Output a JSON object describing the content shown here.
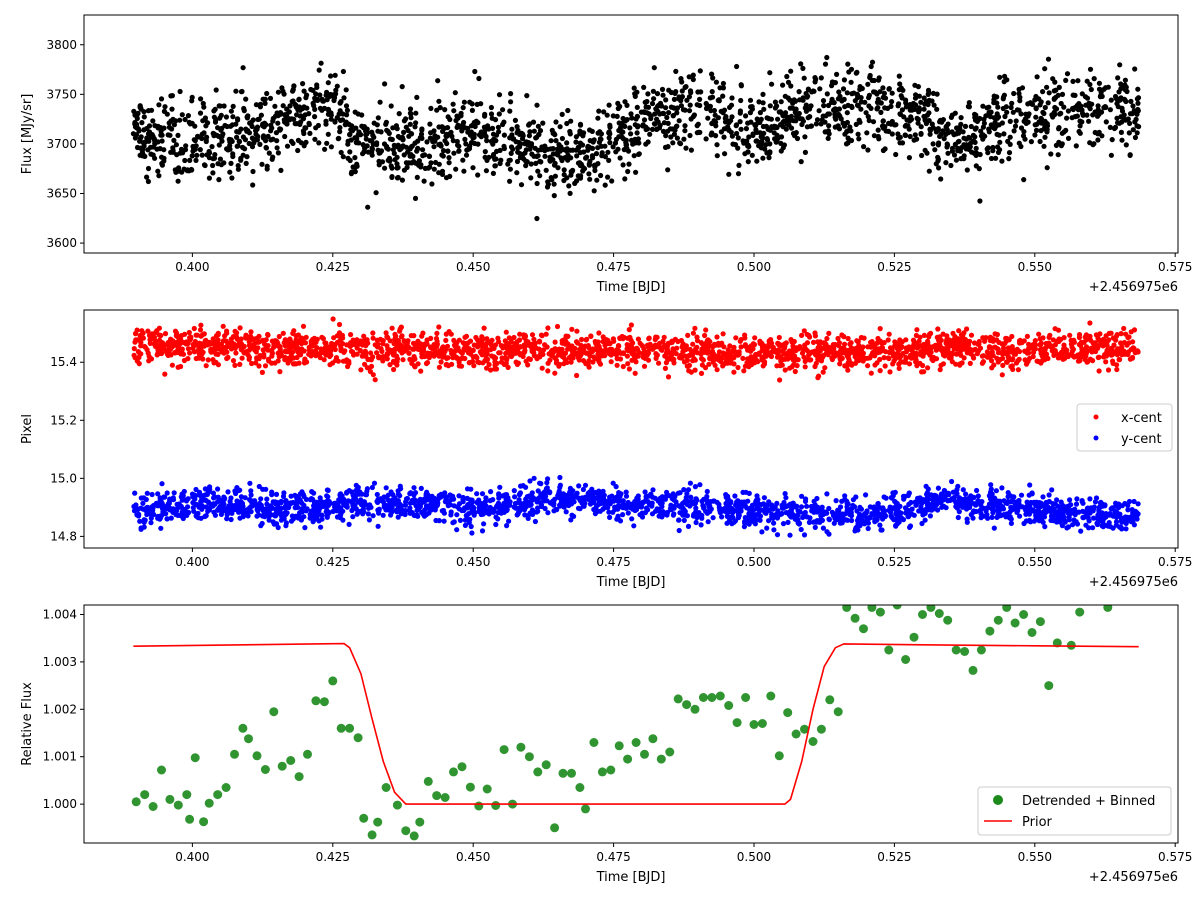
{
  "chart_data": [
    {
      "type": "scatter",
      "xlabel": "Time [BJD]",
      "ylabel": "Flux [MJy/sr]",
      "x_offset_label": "+2.456975e6",
      "xlim": [
        0.3807,
        0.5755
      ],
      "ylim": [
        3590,
        3830
      ],
      "xticks": [
        0.4,
        0.425,
        0.45,
        0.475,
        0.5,
        0.525,
        0.55,
        0.575
      ],
      "xtick_labels": [
        "0.400",
        "0.425",
        "0.450",
        "0.475",
        "0.500",
        "0.525",
        "0.550",
        "0.575"
      ],
      "yticks": [
        3600,
        3650,
        3700,
        3750,
        3800
      ],
      "ytick_labels": [
        "3600",
        "3650",
        "3700",
        "3750",
        "3800"
      ],
      "grid": false,
      "series": [
        {
          "color": "#000000",
          "x_range": [
            0.3895,
            0.5685
          ],
          "trend": [
            [
              0.3895,
              3713
            ],
            [
              0.4,
              3702
            ],
            [
              0.41,
              3712
            ],
            [
              0.42,
              3732
            ],
            [
              0.425,
              3738
            ],
            [
              0.43,
              3695
            ],
            [
              0.44,
              3700
            ],
            [
              0.45,
              3714
            ],
            [
              0.46,
              3695
            ],
            [
              0.466,
              3683
            ],
            [
              0.475,
              3703
            ],
            [
              0.485,
              3733
            ],
            [
              0.492,
              3738
            ],
            [
              0.5,
              3708
            ],
            [
              0.51,
              3738
            ],
            [
              0.52,
              3738
            ],
            [
              0.53,
              3726
            ],
            [
              0.535,
              3702
            ],
            [
              0.54,
              3712
            ],
            [
              0.55,
              3729
            ],
            [
              0.56,
              3739
            ],
            [
              0.5685,
              3738
            ]
          ],
          "spread": 20
        }
      ]
    },
    {
      "type": "scatter",
      "xlabel": "Time [BJD]",
      "ylabel": "Pixel",
      "x_offset_label": "+2.456975e6",
      "xlim": [
        0.3807,
        0.5755
      ],
      "ylim": [
        14.76,
        15.58
      ],
      "xticks": [
        0.4,
        0.425,
        0.45,
        0.475,
        0.5,
        0.525,
        0.55,
        0.575
      ],
      "xtick_labels": [
        "0.400",
        "0.425",
        "0.450",
        "0.475",
        "0.500",
        "0.525",
        "0.550",
        "0.575"
      ],
      "yticks": [
        14.8,
        15.0,
        15.2,
        15.4
      ],
      "ytick_labels": [
        "14.8",
        "15.0",
        "15.2",
        "15.4"
      ],
      "grid": false,
      "legend_position": "center-right",
      "series": [
        {
          "name": "x-cent",
          "color": "#ff0000",
          "x_range": [
            0.3895,
            0.5685
          ],
          "trend": [
            [
              0.3895,
              15.46
            ],
            [
              0.42,
              15.45
            ],
            [
              0.45,
              15.44
            ],
            [
              0.48,
              15.44
            ],
            [
              0.5,
              15.43
            ],
            [
              0.52,
              15.44
            ],
            [
              0.5685,
              15.45
            ]
          ],
          "spread": 0.03
        },
        {
          "name": "y-cent",
          "color": "#0000ff",
          "x_range": [
            0.3895,
            0.5685
          ],
          "trend": [
            [
              0.3895,
              14.88
            ],
            [
              0.4,
              14.92
            ],
            [
              0.42,
              14.89
            ],
            [
              0.43,
              14.92
            ],
            [
              0.45,
              14.9
            ],
            [
              0.465,
              14.93
            ],
            [
              0.48,
              14.91
            ],
            [
              0.5,
              14.89
            ],
            [
              0.52,
              14.87
            ],
            [
              0.535,
              14.93
            ],
            [
              0.55,
              14.89
            ],
            [
              0.5685,
              14.87
            ]
          ],
          "spread": 0.028
        }
      ]
    },
    {
      "type": "scatter",
      "xlabel": "Time [BJD]",
      "ylabel": "Relative Flux",
      "x_offset_label": "+2.456975e6",
      "xlim": [
        0.3807,
        0.5755
      ],
      "ylim": [
        0.99918,
        1.0042
      ],
      "xticks": [
        0.4,
        0.425,
        0.45,
        0.475,
        0.5,
        0.525,
        0.55,
        0.575
      ],
      "xtick_labels": [
        "0.400",
        "0.425",
        "0.450",
        "0.475",
        "0.500",
        "0.525",
        "0.550",
        "0.575"
      ],
      "yticks": [
        1.0,
        1.001,
        1.002,
        1.003,
        1.004
      ],
      "ytick_labels": [
        "1.000",
        "1.001",
        "1.002",
        "1.003",
        "1.004"
      ],
      "grid": false,
      "legend_position": "lower-right",
      "series": [
        {
          "name": "Detrended + Binned",
          "color": "#1a8a1a",
          "marker": "circle",
          "points": [
            [
              0.39,
              1.00005
            ],
            [
              0.3915,
              1.0002
            ],
            [
              0.393,
              0.99995
            ],
            [
              0.3945,
              1.00072
            ],
            [
              0.396,
              1.0001
            ],
            [
              0.3975,
              0.99998
            ],
            [
              0.399,
              1.0002
            ],
            [
              0.3995,
              0.99968
            ],
            [
              0.4005,
              1.00098
            ],
            [
              0.402,
              0.99963
            ],
            [
              0.403,
              1.00002
            ],
            [
              0.4045,
              1.0002
            ],
            [
              0.406,
              1.00035
            ],
            [
              0.4075,
              1.00105
            ],
            [
              0.409,
              1.0016
            ],
            [
              0.41,
              1.00138
            ],
            [
              0.4115,
              1.00102
            ],
            [
              0.413,
              1.00073
            ],
            [
              0.4145,
              1.00195
            ],
            [
              0.416,
              1.0008
            ],
            [
              0.4175,
              1.00092
            ],
            [
              0.419,
              1.00058
            ],
            [
              0.4205,
              1.00105
            ],
            [
              0.422,
              1.00218
            ],
            [
              0.4235,
              1.00216
            ],
            [
              0.425,
              1.0026
            ],
            [
              0.4265,
              1.0016
            ],
            [
              0.428,
              1.0016
            ],
            [
              0.4295,
              1.0014
            ],
            [
              0.4305,
              0.9997
            ],
            [
              0.432,
              0.99935
            ],
            [
              0.433,
              0.99962
            ],
            [
              0.4345,
              1.00035
            ],
            [
              0.4365,
              0.99998
            ],
            [
              0.438,
              0.99944
            ],
            [
              0.4395,
              0.99933
            ],
            [
              0.4405,
              0.99962
            ],
            [
              0.442,
              1.00048
            ],
            [
              0.4435,
              1.00018
            ],
            [
              0.445,
              1.00014
            ],
            [
              0.4465,
              1.00068
            ],
            [
              0.448,
              1.00079
            ],
            [
              0.4495,
              1.00036
            ],
            [
              0.451,
              0.99996
            ],
            [
              0.4525,
              1.00032
            ],
            [
              0.454,
              0.99997
            ],
            [
              0.4555,
              1.00115
            ],
            [
              0.457,
              1.0
            ],
            [
              0.4585,
              1.0012
            ],
            [
              0.46,
              1.001
            ],
            [
              0.4615,
              1.00068
            ],
            [
              0.463,
              1.00083
            ],
            [
              0.4645,
              0.9995
            ],
            [
              0.466,
              1.00065
            ],
            [
              0.4675,
              1.00065
            ],
            [
              0.469,
              1.00035
            ],
            [
              0.47,
              0.9999
            ],
            [
              0.4715,
              1.0013
            ],
            [
              0.473,
              1.00068
            ],
            [
              0.4745,
              1.00072
            ],
            [
              0.476,
              1.00123
            ],
            [
              0.4775,
              1.00095
            ],
            [
              0.479,
              1.0013
            ],
            [
              0.4805,
              1.00105
            ],
            [
              0.482,
              1.00138
            ],
            [
              0.4835,
              1.00095
            ],
            [
              0.485,
              1.0011
            ],
            [
              0.4865,
              1.00222
            ],
            [
              0.488,
              1.0021
            ],
            [
              0.4895,
              1.002
            ],
            [
              0.491,
              1.00225
            ],
            [
              0.4925,
              1.00225
            ],
            [
              0.494,
              1.00228
            ],
            [
              0.4955,
              1.00208
            ],
            [
              0.497,
              1.00172
            ],
            [
              0.4985,
              1.00225
            ],
            [
              0.5,
              1.00168
            ],
            [
              0.5015,
              1.0017
            ],
            [
              0.503,
              1.00228
            ],
            [
              0.5045,
              1.00102
            ],
            [
              0.506,
              1.00193
            ],
            [
              0.5075,
              1.00148
            ],
            [
              0.509,
              1.00158
            ],
            [
              0.5105,
              1.00132
            ],
            [
              0.512,
              1.00158
            ],
            [
              0.5135,
              1.0022
            ],
            [
              0.515,
              1.00195
            ],
            [
              0.5165,
              1.00415
            ],
            [
              0.518,
              1.00392
            ],
            [
              0.5195,
              1.0037
            ],
            [
              0.521,
              1.00415
            ],
            [
              0.5225,
              1.00405
            ],
            [
              0.524,
              1.00325
            ],
            [
              0.5255,
              1.0042
            ],
            [
              0.527,
              1.00305
            ],
            [
              0.5285,
              1.00352
            ],
            [
              0.53,
              1.004
            ],
            [
              0.5315,
              1.00415
            ],
            [
              0.533,
              1.00402
            ],
            [
              0.5345,
              1.00388
            ],
            [
              0.536,
              1.00325
            ],
            [
              0.5375,
              1.00322
            ],
            [
              0.539,
              1.00282
            ],
            [
              0.5405,
              1.00325
            ],
            [
              0.542,
              1.00365
            ],
            [
              0.5435,
              1.00388
            ],
            [
              0.545,
              1.00415
            ],
            [
              0.5465,
              1.00382
            ],
            [
              0.548,
              1.004
            ],
            [
              0.5495,
              1.00362
            ],
            [
              0.551,
              1.00385
            ],
            [
              0.5525,
              1.0025
            ],
            [
              0.554,
              1.0034
            ],
            [
              0.5565,
              1.00335
            ],
            [
              0.558,
              1.00405
            ],
            [
              0.563,
              1.00415
            ]
          ]
        },
        {
          "name": "Prior",
          "color": "#ff0000",
          "line": true,
          "points": [
            [
              0.3895,
              1.00333
            ],
            [
              0.427,
              1.003385
            ],
            [
              0.428,
              1.0033
            ],
            [
              0.43,
              1.00275
            ],
            [
              0.432,
              1.0018
            ],
            [
              0.434,
              1.0009
            ],
            [
              0.436,
              1.00025
            ],
            [
              0.438,
              1.0
            ],
            [
              0.45,
              1.0
            ],
            [
              0.475,
              1.0
            ],
            [
              0.5055,
              1.0
            ],
            [
              0.5065,
              1.0001
            ],
            [
              0.5085,
              1.0009
            ],
            [
              0.5105,
              1.002
            ],
            [
              0.5125,
              1.0029
            ],
            [
              0.5145,
              1.0033
            ],
            [
              0.516,
              1.00338
            ],
            [
              0.53,
              1.00336
            ],
            [
              0.55,
              1.00334
            ],
            [
              0.5685,
              1.00332
            ]
          ]
        }
      ]
    }
  ]
}
